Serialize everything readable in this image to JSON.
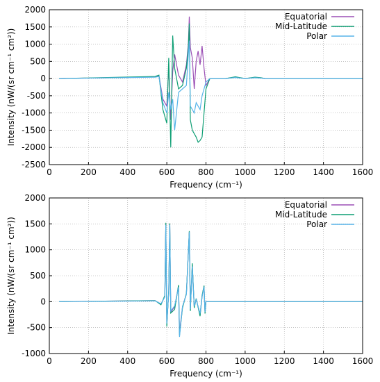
{
  "colors": {
    "equatorial": "#9b4fb5",
    "mid_latitude": "#0d9e73",
    "polar": "#56b4e9",
    "grid": "#a0a0a0",
    "axis": "#000000"
  },
  "chart_data": [
    {
      "type": "line",
      "title": "",
      "xlabel": "Frequency (cm⁻¹)",
      "ylabel": "Intensity (nW/(sr cm⁻¹ cm²))",
      "xlim": [
        0,
        1600
      ],
      "ylim": [
        -2500,
        2000
      ],
      "xticks": [
        0,
        200,
        400,
        600,
        800,
        1000,
        1200,
        1400,
        1600
      ],
      "yticks": [
        -2500,
        -2000,
        -1500,
        -1000,
        -500,
        0,
        500,
        1000,
        1500,
        2000
      ],
      "grid": true,
      "legend_position": "top-right",
      "series": [
        {
          "name": "Equatorial",
          "color": "#9b4fb5",
          "x": [
            50,
            540,
            560,
            580,
            600,
            610,
            620,
            630,
            640,
            660,
            680,
            700,
            710,
            715,
            720,
            730,
            740,
            750,
            760,
            770,
            780,
            790,
            800,
            820,
            900,
            950,
            1000,
            1050,
            1080,
            1100,
            1600
          ],
          "y": [
            0,
            50,
            80,
            -600,
            -800,
            300,
            -1200,
            200,
            700,
            100,
            -100,
            400,
            1000,
            1800,
            900,
            600,
            -300,
            500,
            800,
            400,
            950,
            300,
            -200,
            0,
            0,
            40,
            0,
            30,
            20,
            0,
            0
          ]
        },
        {
          "name": "Mid-Latitude",
          "color": "#0d9e73",
          "x": [
            50,
            540,
            560,
            580,
            600,
            610,
            620,
            630,
            640,
            660,
            680,
            700,
            710,
            715,
            720,
            730,
            740,
            750,
            760,
            770,
            780,
            790,
            800,
            820,
            900,
            950,
            1000,
            1050,
            1080,
            1100,
            1600
          ],
          "y": [
            0,
            60,
            100,
            -900,
            -1300,
            600,
            -2000,
            1250,
            300,
            -300,
            -200,
            300,
            900,
            1600,
            -1200,
            -1500,
            -1600,
            -1700,
            -1850,
            -1800,
            -1700,
            -1000,
            -300,
            0,
            0,
            50,
            0,
            40,
            25,
            0,
            0
          ]
        },
        {
          "name": "Polar",
          "color": "#56b4e9",
          "x": [
            50,
            540,
            560,
            580,
            600,
            610,
            620,
            630,
            640,
            660,
            680,
            700,
            710,
            715,
            720,
            730,
            740,
            750,
            760,
            770,
            780,
            790,
            800,
            820,
            900,
            950,
            1000,
            1050,
            1080,
            1100,
            1600
          ],
          "y": [
            0,
            40,
            60,
            -700,
            -1000,
            -400,
            -900,
            -600,
            -1500,
            -400,
            -300,
            -200,
            700,
            1100,
            -800,
            -900,
            -1000,
            -700,
            -800,
            -900,
            -500,
            -300,
            -100,
            0,
            0,
            30,
            0,
            25,
            15,
            0,
            0
          ]
        }
      ]
    },
    {
      "type": "line",
      "title": "",
      "xlabel": "Frequency (cm⁻¹)",
      "ylabel": "Intensity (nW/(sr cm⁻¹ cm²))",
      "xlim": [
        0,
        1600
      ],
      "ylim": [
        -1000,
        2000
      ],
      "xticks": [
        0,
        200,
        400,
        600,
        800,
        1000,
        1200,
        1400,
        1600
      ],
      "yticks": [
        -1000,
        -500,
        0,
        500,
        1000,
        1500,
        2000
      ],
      "grid": true,
      "legend_position": "top-right",
      "series": [
        {
          "name": "Equatorial",
          "color": "#9b4fb5",
          "x": [
            50,
            540,
            570,
            590,
            595,
            600,
            610,
            615,
            620,
            640,
            660,
            665,
            680,
            700,
            715,
            720,
            730,
            740,
            750,
            770,
            780,
            790,
            795,
            800,
            1100,
            1600
          ],
          "y": [
            0,
            20,
            -50,
            100,
            1500,
            -450,
            200,
            1500,
            -200,
            -100,
            300,
            -600,
            -100,
            150,
            1350,
            -150,
            700,
            -100,
            50,
            -250,
            100,
            300,
            -200,
            0,
            0,
            0
          ]
        },
        {
          "name": "Mid-Latitude",
          "color": "#0d9e73",
          "x": [
            50,
            540,
            570,
            590,
            595,
            600,
            610,
            615,
            620,
            640,
            660,
            665,
            680,
            700,
            715,
            720,
            730,
            740,
            750,
            770,
            780,
            790,
            795,
            800,
            1100,
            1600
          ],
          "y": [
            0,
            20,
            -60,
            120,
            1520,
            -480,
            220,
            1510,
            -220,
            -150,
            320,
            -650,
            -120,
            160,
            1360,
            -180,
            740,
            -120,
            60,
            -280,
            120,
            310,
            -230,
            0,
            0,
            0
          ]
        },
        {
          "name": "Polar",
          "color": "#56b4e9",
          "x": [
            50,
            540,
            570,
            590,
            595,
            600,
            610,
            615,
            620,
            640,
            660,
            665,
            680,
            700,
            715,
            720,
            730,
            740,
            750,
            770,
            780,
            790,
            795,
            800,
            1100,
            1600
          ],
          "y": [
            0,
            15,
            -40,
            90,
            1480,
            -420,
            180,
            1480,
            -180,
            -80,
            280,
            -680,
            -90,
            140,
            1340,
            -140,
            680,
            -90,
            40,
            -230,
            90,
            290,
            -200,
            0,
            0,
            0
          ]
        }
      ]
    }
  ]
}
